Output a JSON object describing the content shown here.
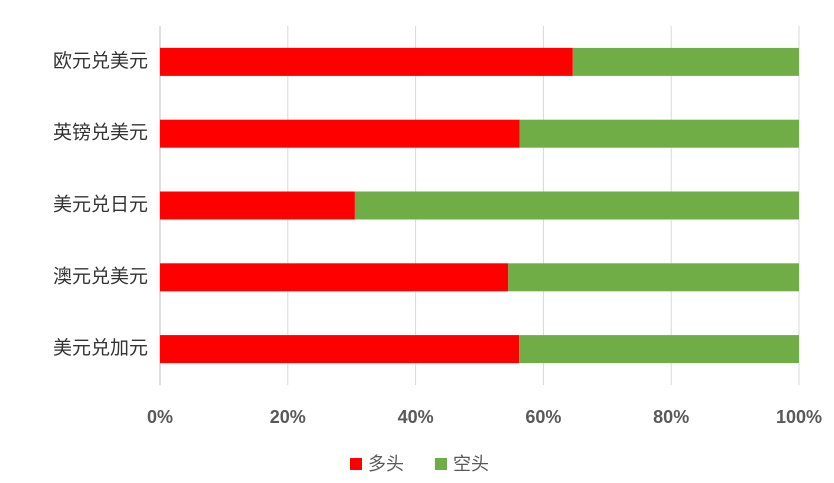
{
  "chart_data": {
    "type": "stacked-bar-horizontal",
    "categories": [
      "欧元兑美元",
      "英镑兑美元",
      "美元兑日元",
      "澳元兑美元",
      "美元兑加元"
    ],
    "series": [
      {
        "name": "多头",
        "color": "#ff0000",
        "values": [
          64.6,
          56.3,
          30.5,
          54.5,
          56.2
        ]
      },
      {
        "name": "空头",
        "color": "#70ad47",
        "values": [
          35.4,
          43.7,
          69.5,
          45.5,
          43.8
        ]
      }
    ],
    "xlim": [
      0,
      100
    ],
    "xticks": [
      {
        "value": 0,
        "label": "0%"
      },
      {
        "value": 20,
        "label": "20%"
      },
      {
        "value": 40,
        "label": "40%"
      },
      {
        "value": 60,
        "label": "60%"
      },
      {
        "value": 80,
        "label": "80%"
      },
      {
        "value": 100,
        "label": "100%"
      }
    ],
    "grid": true
  }
}
